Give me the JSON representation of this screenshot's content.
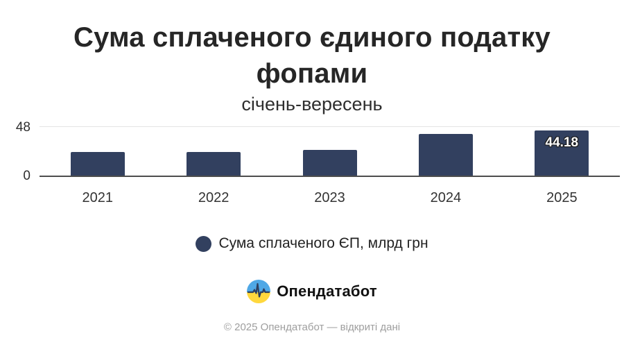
{
  "header": {
    "title": "Сума сплаченого єдиного податку фопами",
    "subtitle": "січень-вересень"
  },
  "chart_data": {
    "type": "bar",
    "categories": [
      "2021",
      "2022",
      "2023",
      "2024",
      "2025"
    ],
    "values": [
      23.2,
      23.0,
      25.3,
      40.3,
      44.18
    ],
    "bar_labels": [
      "",
      "",
      "",
      "",
      "44.18"
    ],
    "title": "Сума сплаченого єдиного податку фопами",
    "subtitle": "січень-вересень",
    "xlabel": "",
    "ylabel": "",
    "ylim": [
      0,
      48
    ],
    "yticks": [
      0,
      48
    ],
    "grid": "single light horizontal gridline at y=48, dark baseline at y=0",
    "legend_position": "bottom-center",
    "series_name": "Сума сплаченого ЄП, млрд грн",
    "bar_color": "#32405f"
  },
  "axis": {
    "ytick_top": "48",
    "ytick_bottom": "0"
  },
  "legend": {
    "label": "Сума сплаченого ЄП, млрд грн"
  },
  "branding": {
    "logo_text": "Опендатабот"
  },
  "footer": {
    "copyright": "© 2025 Опендатабот — відкриті дані"
  },
  "colors": {
    "bar": "#32405f",
    "gridline": "#e3e3e3",
    "axis_line": "#4d4d4d",
    "logo_blue": "#4fa8e6",
    "logo_yellow": "#ffd83d",
    "footer_text": "#9e9e9e"
  }
}
